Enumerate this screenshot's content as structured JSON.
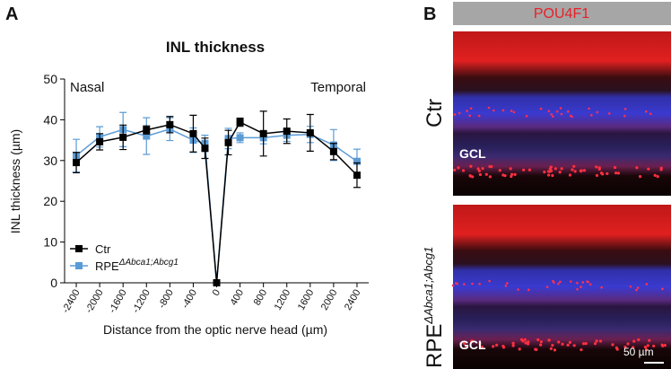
{
  "chart_data": {
    "type": "line",
    "title": "INL thickness",
    "panel_label": "A",
    "x_label": "Distance from the optic nerve head (µm)",
    "y_label": "INL thickness (µm)",
    "annotations": [
      "Nasal",
      "Temporal"
    ],
    "x": [
      -2400,
      -2000,
      -1600,
      -1200,
      -800,
      -400,
      -200,
      0,
      200,
      400,
      800,
      1200,
      1600,
      2000,
      2400
    ],
    "series": [
      {
        "name": "RPE",
        "name_sup": "ΔAbca1;Abcg1",
        "color": "#5b9bd5",
        "values": [
          31.2,
          35.8,
          37.6,
          36.0,
          37.7,
          35.0,
          34.2,
          0,
          35.4,
          35.6,
          35.6,
          36.2,
          36.4,
          33.8,
          29.8
        ],
        "errors": [
          4.0,
          2.5,
          4.2,
          4.5,
          2.8,
          3.0,
          2.0,
          0,
          2.5,
          1.2,
          1.5,
          1.5,
          2.0,
          3.8,
          3.0
        ]
      },
      {
        "name": "Ctr",
        "color": "#000000",
        "values": [
          29.5,
          34.6,
          35.7,
          37.5,
          38.8,
          36.6,
          33.0,
          0,
          34.4,
          39.4,
          36.6,
          37.2,
          36.8,
          32.2,
          26.4
        ],
        "errors": [
          2.5,
          2.0,
          3.0,
          1.0,
          2.0,
          4.5,
          2.5,
          0,
          3.0,
          1.0,
          5.5,
          3.0,
          4.5,
          2.0,
          3.0
        ]
      }
    ],
    "xlim": [
      -2600,
      2600
    ],
    "xticks": [
      -2400,
      -2000,
      -1600,
      -1200,
      -800,
      -400,
      0,
      400,
      800,
      1200,
      1600,
      2000,
      2400
    ],
    "ylim": [
      0,
      50
    ],
    "yticks": [
      0,
      10,
      20,
      30,
      40,
      50
    ],
    "grid": false
  },
  "panel_b": {
    "panel_label": "B",
    "stain": "POU4F1",
    "rows": [
      {
        "label": "Ctr",
        "layer": "GCL"
      },
      {
        "label": "RPE",
        "label_sup": "ΔAbca1;Abcg1",
        "layer": "GCL",
        "scale_bar": "50 µm"
      }
    ]
  }
}
